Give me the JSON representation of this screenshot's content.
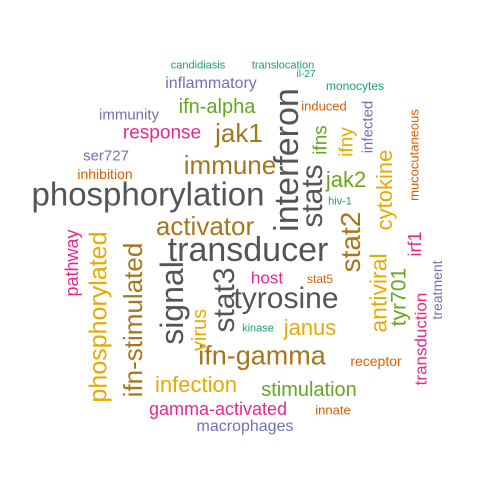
{
  "palette": {
    "teal": "#1b9e77",
    "orange": "#d95f02",
    "purple": "#7570b3",
    "magenta": "#e7298a",
    "green": "#66a61e",
    "gold": "#e6ab02",
    "brown": "#a6761d",
    "gray": "#555555"
  },
  "words": [
    {
      "text": "phosphorylation",
      "color": "gray"
    },
    {
      "text": "interferon",
      "color": "gray"
    },
    {
      "text": "transducer",
      "color": "gray"
    },
    {
      "text": "tyrosine",
      "color": "gray"
    },
    {
      "text": "stats",
      "color": "gray"
    },
    {
      "text": "stat3",
      "color": "gray"
    },
    {
      "text": "signal",
      "color": "gray"
    },
    {
      "text": "stat2",
      "color": "brown"
    },
    {
      "text": "ifn-gamma",
      "color": "brown"
    },
    {
      "text": "activator",
      "color": "brown"
    },
    {
      "text": "immune",
      "color": "brown"
    },
    {
      "text": "jak1",
      "color": "brown"
    },
    {
      "text": "ifn-stimulated",
      "color": "brown"
    },
    {
      "text": "phosphorylated",
      "color": "gold"
    },
    {
      "text": "cytokine",
      "color": "gold"
    },
    {
      "text": "antiviral",
      "color": "gold"
    },
    {
      "text": "infection",
      "color": "gold"
    },
    {
      "text": "janus",
      "color": "gold"
    },
    {
      "text": "virus",
      "color": "gold"
    },
    {
      "text": "ifny",
      "color": "gold"
    },
    {
      "text": "jak2",
      "color": "green"
    },
    {
      "text": "ifn-alpha",
      "color": "green"
    },
    {
      "text": "ifns",
      "color": "green"
    },
    {
      "text": "tyr701",
      "color": "green"
    },
    {
      "text": "stimulation",
      "color": "green"
    },
    {
      "text": "response",
      "color": "magenta"
    },
    {
      "text": "gamma-activated",
      "color": "magenta"
    },
    {
      "text": "transduction",
      "color": "magenta"
    },
    {
      "text": "pathway",
      "color": "magenta"
    },
    {
      "text": "irf1",
      "color": "magenta"
    },
    {
      "text": "host",
      "color": "magenta"
    },
    {
      "text": "inflammatory",
      "color": "purple"
    },
    {
      "text": "macrophages",
      "color": "purple"
    },
    {
      "text": "immunity",
      "color": "purple"
    },
    {
      "text": "ser727",
      "color": "purple"
    },
    {
      "text": "infected",
      "color": "purple"
    },
    {
      "text": "treatment",
      "color": "purple"
    },
    {
      "text": "inhibition",
      "color": "orange"
    },
    {
      "text": "induced",
      "color": "orange"
    },
    {
      "text": "receptor",
      "color": "orange"
    },
    {
      "text": "innate",
      "color": "orange"
    },
    {
      "text": "mucocutaneous",
      "color": "orange"
    },
    {
      "text": "stat5",
      "color": "orange"
    },
    {
      "text": "candidiasis",
      "color": "teal"
    },
    {
      "text": "translocation",
      "color": "teal"
    },
    {
      "text": "il-27",
      "color": "teal"
    },
    {
      "text": "monocytes",
      "color": "teal"
    },
    {
      "text": "hiv-1",
      "color": "teal"
    },
    {
      "text": "kinase",
      "color": "teal"
    }
  ]
}
